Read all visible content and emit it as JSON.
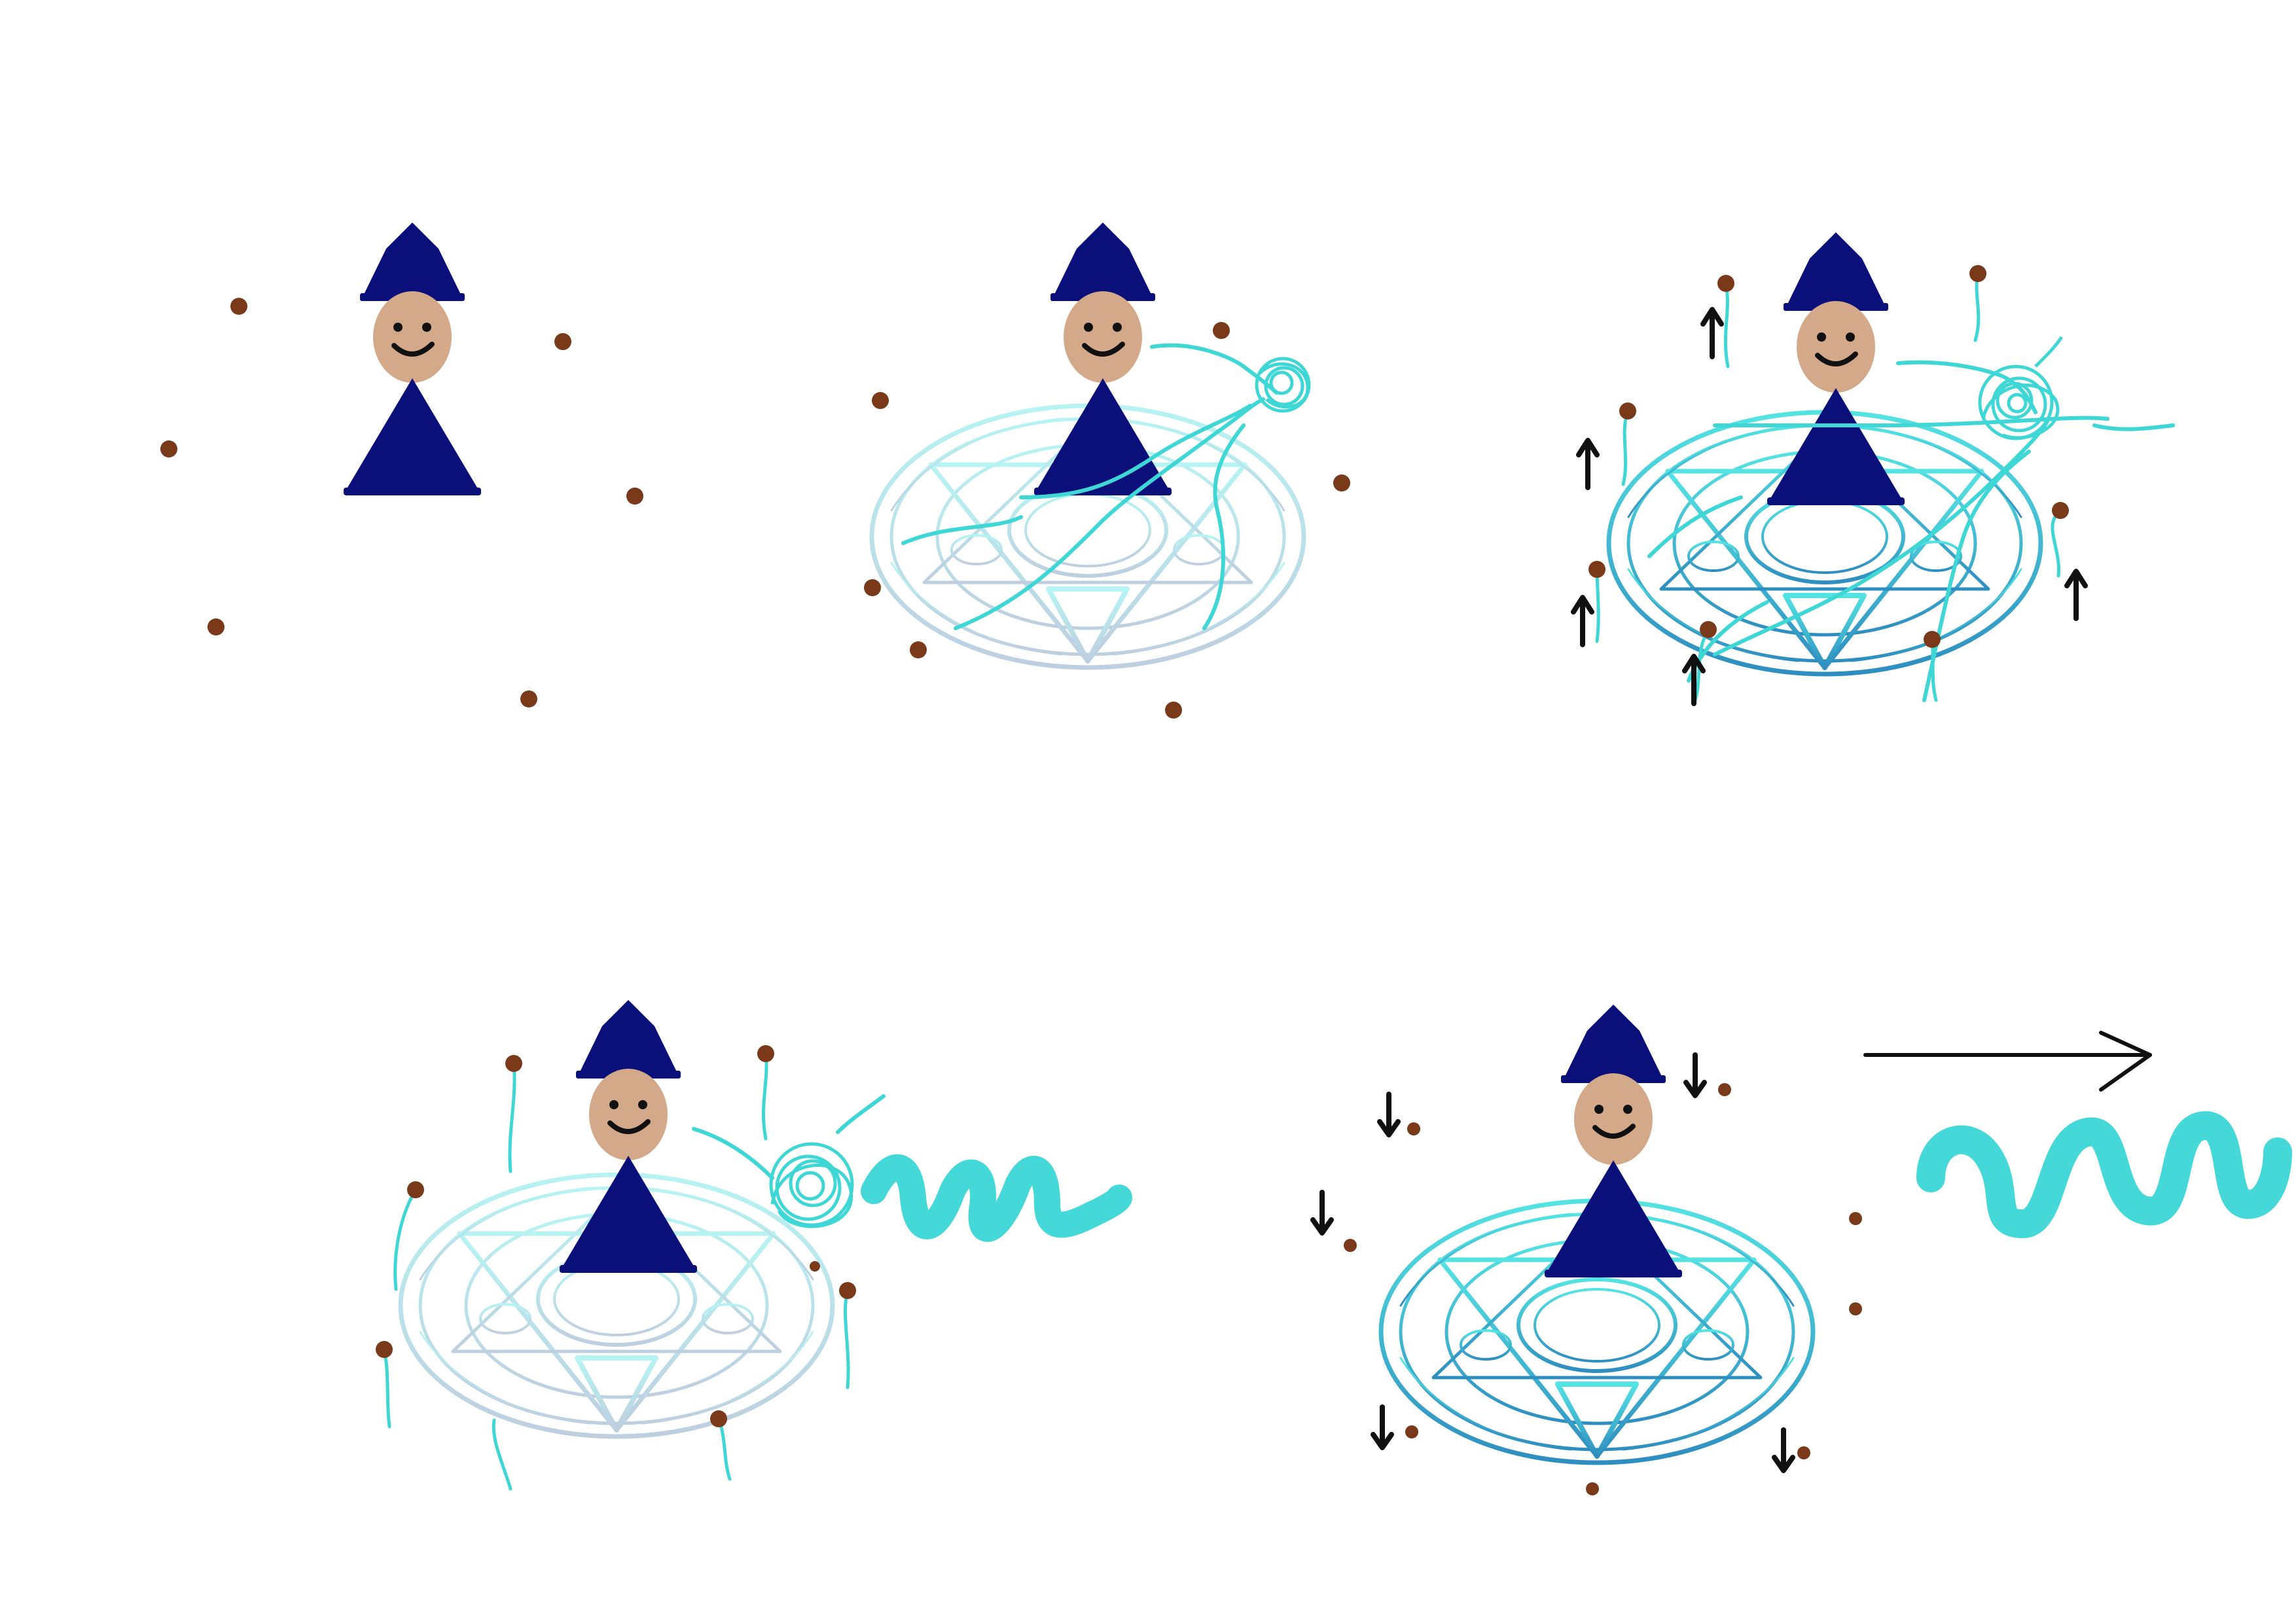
{
  "title": "Wizard casting a water spell in five stages",
  "colors": {
    "background": "#ffffff",
    "robe": "#0b0f7a",
    "face": "#d4a98a",
    "smile": "#111111",
    "particle": "#7a3a1a",
    "magic": "#3fd6d6",
    "circle_light": "#bfe8ee",
    "circle_dark": "#2f93c0",
    "arrow": "#111111"
  },
  "panels": [
    {
      "name": "stage-1",
      "summoned_particles": 8,
      "magic_circle": false,
      "particle_motion": "none",
      "spell": "none"
    },
    {
      "name": "stage-2",
      "summoned_particles": 8,
      "magic_circle": true,
      "particle_motion": "none",
      "spell": "gathering"
    },
    {
      "name": "stage-3",
      "summoned_particles": 8,
      "magic_circle": true,
      "particle_motion": "rising",
      "spell": "charging"
    },
    {
      "name": "stage-4",
      "summoned_particles": 7,
      "magic_circle": true,
      "particle_motion": "rising",
      "spell": "released"
    },
    {
      "name": "stage-5",
      "summoned_particles": 9,
      "magic_circle": true,
      "particle_motion": "falling",
      "spell": "water-wave"
    }
  ],
  "icons": {
    "up_arrow": "up-arrow-icon",
    "down_arrow": "down-arrow-icon",
    "direction_arrow": "right-arrow-icon"
  }
}
